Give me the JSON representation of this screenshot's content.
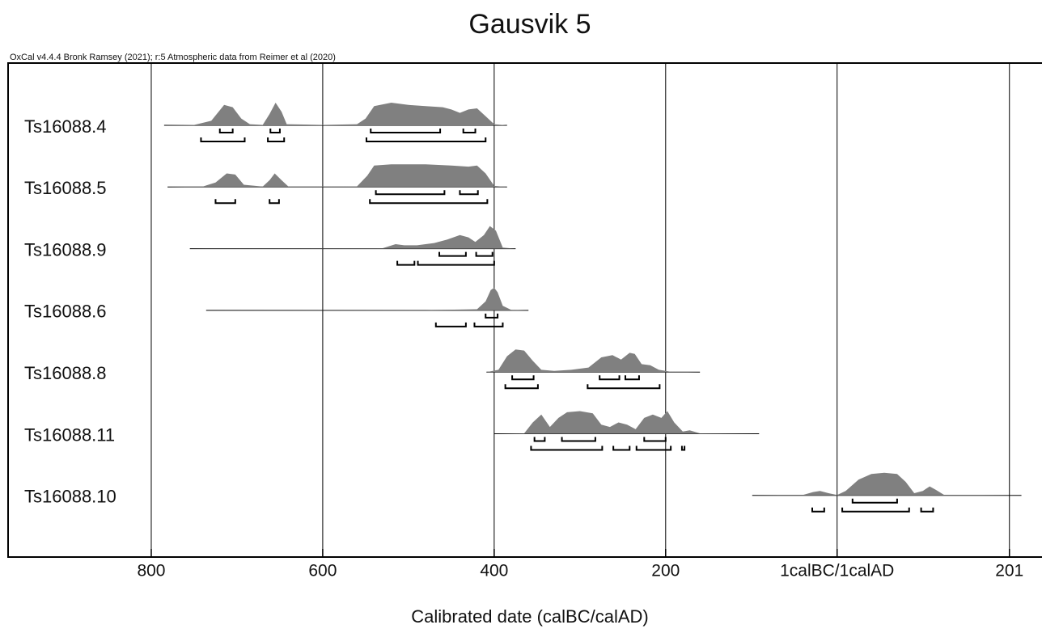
{
  "chart_data": {
    "type": "density",
    "title": "Gausvik 5",
    "subtitle": "OxCal v4.4.4 Bronk Ramsey (2021); r:5 Atmospheric data from Reimer et al (2020)",
    "x_label": "Calibrated date (calBC/calAD)",
    "xlim": [
      -967,
      239
    ],
    "xticks": [
      {
        "value": -800,
        "label": "800"
      },
      {
        "value": -600,
        "label": "600"
      },
      {
        "value": -400,
        "label": "400"
      },
      {
        "value": -200,
        "label": "200"
      },
      {
        "value": 0,
        "label": "1calBC/1calAD"
      },
      201
    ],
    "grid": true,
    "color": "#808080",
    "series": [
      {
        "name": "Ts16088.4",
        "range": [
          -785,
          -385
        ],
        "x": [
          -785,
          -750,
          -730,
          -715,
          -705,
          -695,
          -685,
          -670,
          -662,
          -655,
          -648,
          -642,
          -600,
          -560,
          -550,
          -540,
          -520,
          -500,
          -480,
          -460,
          -450,
          -440,
          -430,
          -420,
          -410,
          -400,
          -385
        ],
        "density": [
          0,
          0.02,
          0.2,
          0.9,
          0.8,
          0.3,
          0.05,
          0.02,
          0.5,
          1.0,
          0.6,
          0.05,
          0.02,
          0.05,
          0.3,
          0.85,
          1.0,
          0.9,
          0.85,
          0.8,
          0.7,
          0.55,
          0.7,
          0.75,
          0.4,
          0.05,
          0
        ],
        "hpd68": [
          [
            -720,
            -705
          ],
          [
            -661,
            -650
          ],
          [
            -544,
            -463
          ],
          [
            -436,
            -422
          ]
        ],
        "hpd95": [
          [
            -742,
            -691
          ],
          [
            -664,
            -645
          ],
          [
            -549,
            -410
          ]
        ]
      },
      {
        "name": "Ts16088.5",
        "range": [
          -781,
          -385
        ],
        "x": [
          -781,
          -740,
          -725,
          -712,
          -702,
          -692,
          -670,
          -662,
          -656,
          -648,
          -640,
          -560,
          -548,
          -540,
          -520,
          -480,
          -450,
          -430,
          -420,
          -410,
          -400,
          -385
        ],
        "density": [
          0,
          0.02,
          0.2,
          0.6,
          0.55,
          0.1,
          0.02,
          0.3,
          0.6,
          0.3,
          0.02,
          0.03,
          0.5,
          0.95,
          1.0,
          1.0,
          0.95,
          0.9,
          0.95,
          0.6,
          0.05,
          0
        ],
        "hpd68": [
          [
            -538,
            -458
          ],
          [
            -440,
            -419
          ]
        ],
        "hpd95": [
          [
            -725,
            -702
          ],
          [
            -662,
            -651
          ],
          [
            -545,
            -408
          ]
        ]
      },
      {
        "name": "Ts16088.9",
        "range": [
          -755,
          -375
        ],
        "x": [
          -755,
          -530,
          -515,
          -505,
          -490,
          -470,
          -455,
          -440,
          -430,
          -422,
          -412,
          -405,
          -398,
          -390,
          -375
        ],
        "density": [
          0,
          0.02,
          0.2,
          0.15,
          0.15,
          0.25,
          0.4,
          0.6,
          0.5,
          0.3,
          0.6,
          1.0,
          0.8,
          0.05,
          0
        ],
        "hpd68": [
          [
            -464,
            -433
          ],
          [
            -421,
            -402
          ]
        ],
        "hpd95": [
          [
            -513,
            -493
          ],
          [
            -489,
            -400
          ]
        ]
      },
      {
        "name": "Ts16088.6",
        "range": [
          -736,
          -360
        ],
        "x": [
          -736,
          -480,
          -420,
          -410,
          -404,
          -400,
          -396,
          -390,
          -380,
          -360
        ],
        "density": [
          0,
          0.01,
          0.05,
          0.4,
          0.9,
          1.0,
          0.8,
          0.2,
          0.02,
          0
        ],
        "hpd68": [
          [
            -410,
            -396
          ]
        ],
        "hpd95": [
          [
            -468,
            -433
          ],
          [
            -423,
            -390
          ]
        ]
      },
      {
        "name": "Ts16088.8",
        "range": [
          -409,
          -160
        ],
        "x": [
          -409,
          -395,
          -385,
          -375,
          -365,
          -355,
          -345,
          -330,
          -310,
          -290,
          -275,
          -262,
          -252,
          -242,
          -236,
          -228,
          -218,
          -208,
          -195,
          -160
        ],
        "density": [
          0,
          0.1,
          0.7,
          1.0,
          0.95,
          0.5,
          0.1,
          0.05,
          0.1,
          0.2,
          0.65,
          0.75,
          0.55,
          0.85,
          0.8,
          0.35,
          0.3,
          0.1,
          0.02,
          0
        ],
        "hpd68": [
          [
            -379,
            -354
          ],
          [
            -277,
            -254
          ],
          [
            -247,
            -231
          ]
        ],
        "hpd95": [
          [
            -387,
            -349
          ],
          [
            -291,
            -207
          ]
        ]
      },
      {
        "name": "Ts16088.11",
        "range": [
          -400,
          -91
        ],
        "x": [
          -400,
          -365,
          -355,
          -345,
          -335,
          -325,
          -315,
          -300,
          -285,
          -275,
          -265,
          -255,
          -245,
          -235,
          -225,
          -215,
          -205,
          -198,
          -190,
          -180,
          -172,
          -160,
          -91
        ],
        "density": [
          0,
          0.02,
          0.5,
          0.85,
          0.3,
          0.7,
          0.95,
          1.0,
          0.9,
          0.4,
          0.3,
          0.5,
          0.4,
          0.2,
          0.7,
          0.85,
          0.7,
          1.0,
          0.5,
          0.1,
          0.15,
          0.02,
          0
        ],
        "hpd68": [
          [
            -353,
            -341
          ],
          [
            -321,
            -282
          ],
          [
            -225,
            -200
          ]
        ],
        "hpd95": [
          [
            -357,
            -274
          ],
          [
            -261,
            -242
          ],
          [
            -234,
            -194
          ],
          [
            -181,
            -178
          ]
        ]
      },
      {
        "name": "Ts16088.10",
        "range": [
          -99,
          215
        ],
        "x": [
          -99,
          -40,
          -28,
          -20,
          -10,
          0,
          10,
          25,
          40,
          55,
          70,
          80,
          90,
          100,
          108,
          115,
          125,
          215
        ],
        "density": [
          0,
          0.02,
          0.15,
          0.2,
          0.1,
          0.02,
          0.2,
          0.7,
          0.95,
          1.0,
          0.95,
          0.6,
          0.1,
          0.2,
          0.4,
          0.25,
          0.02,
          0
        ],
        "hpd68": [
          [
            18,
            70
          ]
        ],
        "hpd95": [
          [
            -29,
            -15
          ],
          [
            6,
            84
          ],
          [
            98,
            112
          ]
        ]
      }
    ]
  }
}
